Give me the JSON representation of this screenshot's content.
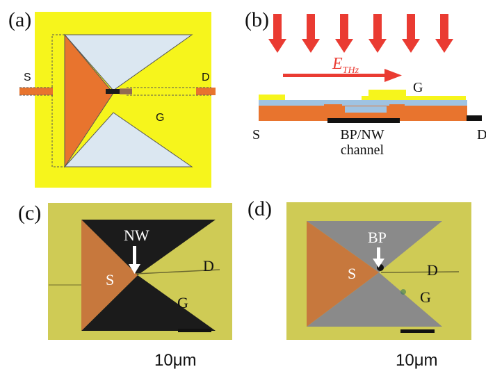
{
  "colors": {
    "gold_pad": "#f6f51c",
    "orange_source": "#e8742e",
    "light_blue": "#dbe7f1",
    "arrow_red": "#ea3b32",
    "sem_gold": "#cfcb55",
    "sem_copper": "#c7783d",
    "sem_black": "#1b1b1b",
    "sem_gray": "#8a8a8a"
  },
  "panels": {
    "a": {
      "label": "(a)",
      "source": "S",
      "drain": "D",
      "gate": "G"
    },
    "b": {
      "label": "(b)",
      "field_main": "E",
      "field_sub": "THz",
      "gate": "G",
      "source": "S",
      "drain": "D",
      "channel_line1": "BP/NW",
      "channel_line2": "channel"
    },
    "c": {
      "label": "(c)",
      "pointer": "NW",
      "source": "S",
      "drain": "D",
      "gate": "G",
      "scale": "10μm"
    },
    "d": {
      "label": "(d)",
      "pointer": "BP",
      "source": "S",
      "drain": "D",
      "gate": "G",
      "scale": "10μm"
    }
  }
}
